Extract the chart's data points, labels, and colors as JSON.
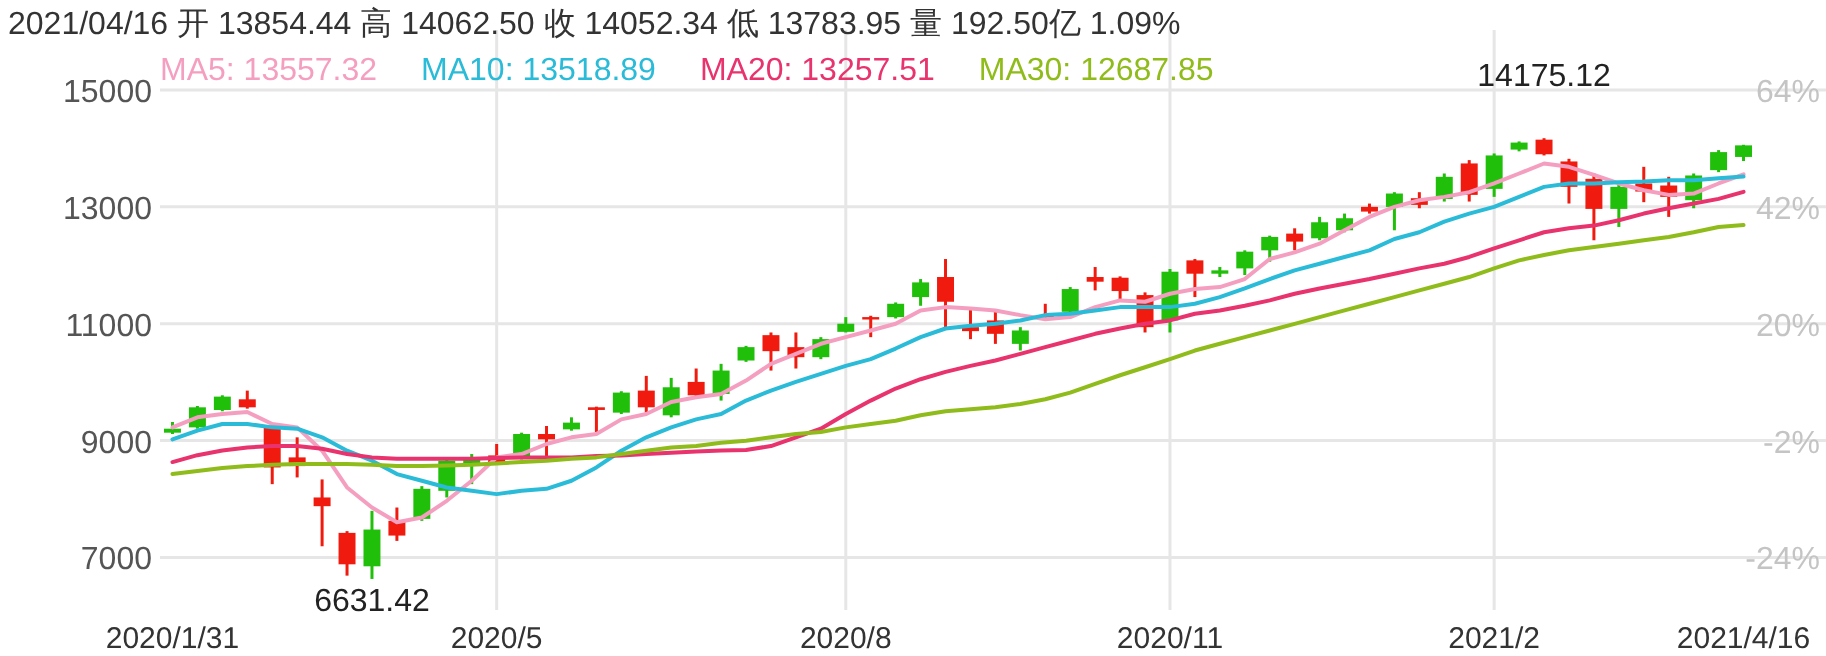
{
  "chart_data": {
    "type": "candlestick",
    "title": "2021/04/16 开 13854.44 高 14062.50 收 14052.34 低 13783.95 量 192.50亿 1.09%",
    "categories": [
      "2020/1/31",
      null,
      null,
      null,
      null,
      null,
      null,
      null,
      null,
      null,
      null,
      null,
      null,
      "2020/5",
      null,
      null,
      null,
      null,
      null,
      null,
      null,
      null,
      null,
      null,
      null,
      null,
      null,
      "2020/8",
      null,
      null,
      null,
      null,
      null,
      null,
      null,
      null,
      null,
      null,
      null,
      null,
      "2020/11",
      null,
      null,
      null,
      null,
      null,
      null,
      null,
      null,
      null,
      null,
      null,
      null,
      "2021/2",
      null,
      null,
      null,
      null,
      null,
      null,
      null,
      null,
      null,
      "2021/4/16"
    ],
    "ohlc": [
      [
        9135,
        9318,
        9112,
        9203
      ],
      [
        9226,
        9592,
        9203,
        9569
      ],
      [
        9523,
        9775,
        9501,
        9752
      ],
      [
        9706,
        9855,
        9546,
        9569
      ],
      [
        9226,
        9284,
        8254,
        8540
      ],
      [
        8712,
        9055,
        8369,
        8563
      ],
      [
        8026,
        8335,
        7191,
        7877
      ],
      [
        7420,
        7450,
        6688,
        6882
      ],
      [
        6848,
        7797,
        6631.42,
        7477
      ],
      [
        7626,
        7854,
        7283,
        7374
      ],
      [
        7660,
        8220,
        7626,
        8174
      ],
      [
        8140,
        8712,
        8026,
        8655
      ],
      [
        8597,
        8769,
        8254,
        8689
      ],
      [
        8746,
        8941,
        8597,
        8632
      ],
      [
        8712,
        9135,
        8677,
        9112
      ],
      [
        9112,
        9249,
        8712,
        9021
      ],
      [
        9192,
        9398,
        9169,
        9307
      ],
      [
        9569,
        9580,
        9146,
        9524
      ],
      [
        9478,
        9844,
        9455,
        9821
      ],
      [
        9855,
        10107,
        9478,
        9569
      ],
      [
        9432,
        10073,
        9398,
        9912
      ],
      [
        10004,
        10233,
        9760,
        9775
      ],
      [
        9798,
        10313,
        9684,
        10198
      ],
      [
        10370,
        10621,
        10347,
        10599
      ],
      [
        10804,
        10850,
        10198,
        10530
      ],
      [
        10599,
        10850,
        10233,
        10427
      ],
      [
        10427,
        10770,
        10393,
        10736
      ],
      [
        10861,
        11113,
        10850,
        11000
      ],
      [
        11113,
        11136,
        10770,
        11078
      ],
      [
        11113,
        11364,
        11090,
        11341
      ],
      [
        11456,
        11764,
        11307,
        11707
      ],
      [
        11799,
        12107,
        10918,
        11376
      ],
      [
        10941,
        11284,
        10736,
        10873
      ],
      [
        11056,
        11227,
        10655,
        10827
      ],
      [
        10655,
        10941,
        10541,
        10884
      ],
      [
        11147,
        11341,
        11078,
        11101
      ],
      [
        11204,
        11627,
        11170,
        11593
      ],
      [
        11799,
        11970,
        11570,
        11719
      ],
      [
        11787,
        11810,
        11398,
        11559
      ],
      [
        11490,
        11536,
        10850,
        10941
      ],
      [
        11056,
        11936,
        10850,
        11890
      ],
      [
        12084,
        12107,
        11456,
        11856
      ],
      [
        11856,
        11970,
        11799,
        11913
      ],
      [
        11947,
        12256,
        11833,
        12233
      ],
      [
        12256,
        12507,
        12061,
        12485
      ],
      [
        12542,
        12633,
        12256,
        12405
      ],
      [
        12462,
        12828,
        12428,
        12736
      ],
      [
        12599,
        12885,
        12565,
        12805
      ],
      [
        13000,
        13056,
        12885,
        12919
      ],
      [
        12999,
        13251,
        12599,
        13228
      ],
      [
        13148,
        13251,
        12976,
        13034
      ],
      [
        13136,
        13571,
        13091,
        13514
      ],
      [
        13743,
        13800,
        13091,
        13205
      ],
      [
        13308,
        13914,
        13171,
        13880
      ],
      [
        13980,
        14120,
        13950,
        14100
      ],
      [
        14150,
        14175.12,
        13880,
        13900
      ],
      [
        13777,
        13822,
        13057,
        13343
      ],
      [
        13480,
        13571,
        12428,
        12965
      ],
      [
        12965,
        13400,
        12656,
        13342
      ],
      [
        13400,
        13685,
        13080,
        13262
      ],
      [
        13365,
        13514,
        12828,
        13171
      ],
      [
        13114,
        13571,
        12976,
        13537
      ],
      [
        13628,
        13971,
        13594,
        13937
      ],
      [
        13854.44,
        14062.5,
        13783.95,
        14052.34
      ]
    ],
    "colors": [
      "#1fbf0a",
      "#1fbf0a",
      "#1fbf0a",
      "#f01a0f",
      "#f01a0f",
      "#f01a0f",
      "#f01a0f",
      "#f01a0f",
      "#1fbf0a",
      "#f01a0f",
      "#1fbf0a",
      "#1fbf0a",
      "#1fbf0a",
      "#f01a0f",
      "#1fbf0a",
      "#f01a0f",
      "#1fbf0a",
      "#f01a0f",
      "#1fbf0a",
      "#f01a0f",
      "#1fbf0a",
      "#f01a0f",
      "#1fbf0a",
      "#1fbf0a",
      "#f01a0f",
      "#f01a0f",
      "#1fbf0a",
      "#1fbf0a",
      "#f01a0f",
      "#1fbf0a",
      "#1fbf0a",
      "#f01a0f",
      "#f01a0f",
      "#f01a0f",
      "#1fbf0a",
      "#f01a0f",
      "#1fbf0a",
      "#f01a0f",
      "#f01a0f",
      "#f01a0f",
      "#1fbf0a",
      "#f01a0f",
      "#1fbf0a",
      "#1fbf0a",
      "#1fbf0a",
      "#f01a0f",
      "#1fbf0a",
      "#1fbf0a",
      "#f01a0f",
      "#1fbf0a",
      "#f01a0f",
      "#1fbf0a",
      "#f01a0f",
      "#1fbf0a",
      "#1fbf0a",
      "#f01a0f",
      "#f01a0f",
      "#f01a0f",
      "#1fbf0a",
      "#f01a0f",
      "#f01a0f",
      "#1fbf0a",
      "#1fbf0a",
      "#1fbf0a"
    ],
    "series": [
      {
        "type": "line",
        "name": "MA5: 13557.32",
        "color": "#f59fc0",
        "values": [
          9226,
          9398,
          9455,
          9489,
          9284,
          9226,
          8826,
          8197,
          7854,
          7603,
          7683,
          7969,
          8312,
          8712,
          8769,
          8941,
          9055,
          9112,
          9363,
          9455,
          9661,
          9741,
          9798,
          10027,
          10313,
          10484,
          10656,
          10770,
          10884,
          10999,
          11227,
          11284,
          11261,
          11227,
          11147,
          11078,
          11113,
          11284,
          11399,
          11376,
          11513,
          11593,
          11627,
          11764,
          12107,
          12222,
          12370,
          12599,
          12828,
          12999,
          13114,
          13171,
          13251,
          13400,
          13571,
          13742,
          13685,
          13548,
          13400,
          13285,
          13205,
          13228,
          13400,
          13557.32
        ]
      },
      {
        "type": "line",
        "name": "MA10: 13518.89",
        "color": "#29bbd8",
        "values": [
          9020,
          9169,
          9284,
          9284,
          9226,
          9203,
          9055,
          8826,
          8655,
          8426,
          8312,
          8197,
          8140,
          8083,
          8140,
          8174,
          8312,
          8540,
          8826,
          9055,
          9226,
          9363,
          9455,
          9684,
          9855,
          10004,
          10141,
          10278,
          10393,
          10575,
          10770,
          10918,
          10964,
          10998,
          11056,
          11147,
          11170,
          11227,
          11284,
          11284,
          11284,
          11341,
          11456,
          11604,
          11764,
          11913,
          12027,
          12142,
          12256,
          12450,
          12565,
          12748,
          12885,
          12999,
          13171,
          13342,
          13400,
          13400,
          13422,
          13434,
          13457,
          13457,
          13491,
          13518.89
        ]
      },
      {
        "type": "line",
        "name": "MA20: 13257.51",
        "color": "#e8336e",
        "values": [
          8632,
          8750,
          8830,
          8883,
          8906,
          8906,
          8860,
          8769,
          8712,
          8689,
          8689,
          8689,
          8689,
          8700,
          8712,
          8712,
          8712,
          8735,
          8746,
          8769,
          8792,
          8815,
          8830,
          8840,
          8906,
          9055,
          9203,
          9455,
          9684,
          9890,
          10050,
          10175,
          10278,
          10370,
          10484,
          10599,
          10713,
          10827,
          10918,
          10998,
          11056,
          11170,
          11227,
          11307,
          11399,
          11513,
          11604,
          11684,
          11764,
          11856,
          11947,
          12027,
          12142,
          12290,
          12428,
          12565,
          12633,
          12679,
          12771,
          12885,
          12976,
          13056,
          13136,
          13257.51
        ]
      },
      {
        "type": "line",
        "name": "MA30: 12687.85",
        "color": "#8fbc1a",
        "values": [
          8426,
          8480,
          8530,
          8563,
          8586,
          8597,
          8597,
          8597,
          8586,
          8563,
          8563,
          8575,
          8586,
          8609,
          8632,
          8655,
          8689,
          8712,
          8769,
          8826,
          8883,
          8906,
          8963,
          8997,
          9055,
          9112,
          9146,
          9226,
          9284,
          9340,
          9432,
          9501,
          9535,
          9569,
          9627,
          9707,
          9821,
          9970,
          10118,
          10255,
          10393,
          10541,
          10656,
          10770,
          10884,
          10998,
          11113,
          11227,
          11341,
          11456,
          11570,
          11684,
          11799,
          11947,
          12084,
          12176,
          12256,
          12313,
          12370,
          12428,
          12485,
          12565,
          12656,
          12687.85
        ]
      }
    ],
    "ylim": [
      6100,
      15000
    ],
    "yticks": [
      7000,
      9000,
      11000,
      13000,
      15000
    ],
    "y2lim": [
      -33.9,
      64
    ],
    "y2ticks": [
      {
        "value": 64,
        "label": "64%"
      },
      {
        "value": 42,
        "label": "42%"
      },
      {
        "value": 20,
        "label": "20%"
      },
      {
        "value": -2,
        "label": "-2%"
      },
      {
        "value": -24,
        "label": "-24%"
      }
    ],
    "annotations": [
      {
        "text": "14175.12",
        "y": 14175.12
      },
      {
        "text": "6631.42",
        "y": 6631.42
      }
    ],
    "grid": true,
    "legend": "top"
  }
}
